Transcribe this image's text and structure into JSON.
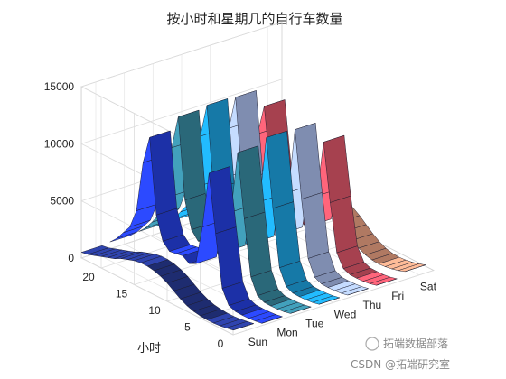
{
  "chart_data": {
    "type": "surface3d",
    "title": "按小时和星期几的自行车数量",
    "xlabel": "",
    "ylabel": "小时",
    "zlabel": "",
    "x_categories": [
      "Sun",
      "Mon",
      "Tue",
      "Wed",
      "Thu",
      "Fri",
      "Sat"
    ],
    "y_ticks": [
      0,
      5,
      10,
      15,
      20
    ],
    "z_ticks": [
      0,
      5000,
      10000,
      15000
    ],
    "zlim": [
      0,
      15000
    ],
    "hours": [
      0,
      1,
      2,
      3,
      4,
      5,
      6,
      7,
      8,
      9,
      10,
      11,
      12,
      13,
      14,
      15,
      16,
      17,
      18,
      19,
      20,
      21,
      22,
      23
    ],
    "series": [
      {
        "values": [
          400,
          300,
          200,
          150,
          150,
          200,
          300,
          500,
          800,
          1200,
          1600,
          1900,
          2100,
          2200,
          2200,
          2100,
          1900,
          1700,
          1400,
          1200,
          1000,
          800,
          600,
          500
        ],
        "color": "#2a3d9c"
      },
      {
        "values": [
          200,
          100,
          50,
          40,
          60,
          300,
          1500,
          6000,
          11000,
          6000,
          2500,
          2200,
          2600,
          2500,
          2400,
          3000,
          5000,
          11500,
          9000,
          4500,
          2800,
          2000,
          1200,
          600
        ],
        "color": "#2742e8"
      },
      {
        "values": [
          250,
          120,
          60,
          40,
          60,
          350,
          1700,
          6500,
          12000,
          6500,
          2700,
          2300,
          2700,
          2600,
          2500,
          3200,
          5500,
          12500,
          9500,
          4800,
          3000,
          2100,
          1300,
          700
        ],
        "color": "#3b90a8"
      },
      {
        "values": [
          250,
          120,
          60,
          40,
          60,
          350,
          1700,
          6600,
          12500,
          6600,
          2700,
          2300,
          2700,
          2600,
          2500,
          3200,
          5600,
          12700,
          9700,
          4900,
          3100,
          2200,
          1300,
          700
        ],
        "color": "#1ea8e8"
      },
      {
        "values": [
          250,
          120,
          60,
          40,
          60,
          350,
          1700,
          6600,
          12400,
          6600,
          2700,
          2300,
          2700,
          2600,
          2500,
          3200,
          5600,
          12600,
          9600,
          4900,
          3100,
          2200,
          1300,
          700
        ],
        "color": "#b0c4f4"
      },
      {
        "values": [
          300,
          150,
          70,
          50,
          60,
          300,
          1400,
          5500,
          10500,
          5500,
          2600,
          2400,
          2800,
          2700,
          2700,
          3300,
          5300,
          11000,
          8300,
          4500,
          3000,
          2300,
          1600,
          1000
        ],
        "color": "#e65a6e"
      },
      {
        "values": [
          700,
          500,
          350,
          250,
          200,
          250,
          400,
          700,
          1100,
          1600,
          2100,
          2500,
          2700,
          2800,
          2800,
          2700,
          2500,
          2200,
          1900,
          1600,
          1300,
          1100,
          900,
          750
        ],
        "color": "#f4a888"
      }
    ],
    "grid": true,
    "view": "3d-perspective"
  },
  "watermark": {
    "wechat": "拓端数据部落",
    "csdn": "CSDN @拓端研究室"
  }
}
